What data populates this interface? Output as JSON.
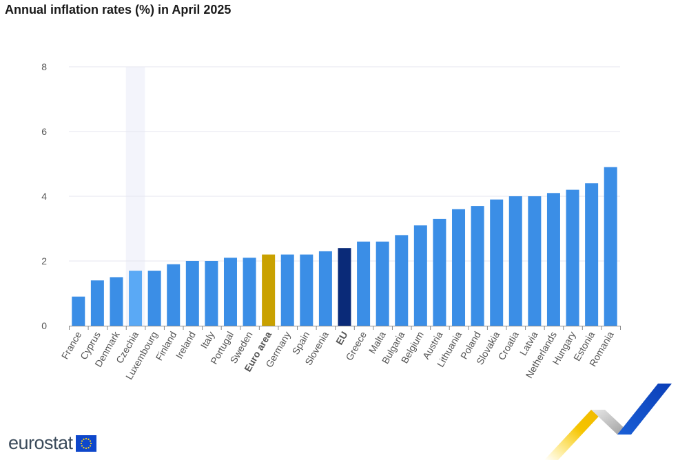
{
  "title": "Annual inflation rates (%) in April 2025",
  "brand": {
    "name": "eurostat",
    "flag_icon": "eu-flag-icon"
  },
  "colors": {
    "bar": "#3b8ee6",
    "bar_hover": "#5aa9f5",
    "euro_area": "#c9a100",
    "eu": "#0a2a78",
    "grid": "#e4e6ef",
    "axis_text": "#555555",
    "hover_band": "#f3f4fb"
  },
  "chart_data": {
    "type": "bar",
    "title": "Annual inflation rates (%) in April 2025",
    "xlabel": "",
    "ylabel": "",
    "ylim": [
      0,
      8
    ],
    "yticks": [
      0,
      2,
      4,
      6,
      8
    ],
    "grid": true,
    "categories": [
      "France",
      "Cyprus",
      "Denmark",
      "Czechia",
      "Luxembourg",
      "Finland",
      "Ireland",
      "Italy",
      "Portugal",
      "Sweden",
      "Euro area",
      "Germany",
      "Spain",
      "Slovenia",
      "EU",
      "Greece",
      "Malta",
      "Bulgaria",
      "Belgium",
      "Austria",
      "Lithuania",
      "Poland",
      "Slovakia",
      "Croatia",
      "Latvia",
      "Netherlands",
      "Hungary",
      "Estonia",
      "Romania"
    ],
    "values": [
      0.9,
      1.4,
      1.5,
      1.7,
      1.7,
      1.9,
      2.0,
      2.0,
      2.1,
      2.1,
      2.2,
      2.2,
      2.2,
      2.3,
      2.4,
      2.6,
      2.6,
      2.8,
      3.1,
      3.3,
      3.6,
      3.7,
      3.9,
      4.0,
      4.0,
      4.1,
      4.2,
      4.4,
      4.9
    ],
    "highlighted": {
      "Euro area": "euro_area",
      "EU": "eu"
    },
    "bold_labels": [
      "Euro area",
      "EU"
    ],
    "hovered": "Czechia"
  }
}
